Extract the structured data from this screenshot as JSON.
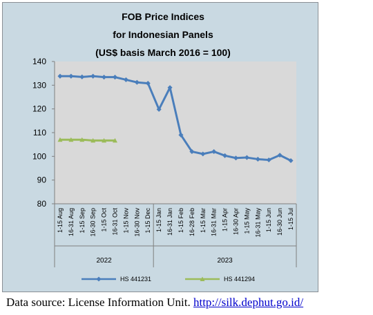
{
  "chart_data": {
    "type": "line",
    "title_lines": [
      "FOB Price Indices",
      "for Indonesian Panels",
      "(US$ basis March 2016 = 100)"
    ],
    "categories": [
      "1-15 Aug",
      "16-31 Aug",
      "1-15 Sep",
      "16-30 Sep",
      "1-15 Oct",
      "16-31 Oct",
      "1-15 Nov",
      "16-30 Nov",
      "1-15 Dec",
      "1-15 Jan",
      "16-31 Jan",
      "1-15 Feb",
      "16-28 Feb",
      "1-15 Mar",
      "16-31 Mar",
      "1-15 Apr",
      "16-30 Apr",
      "1-15 May",
      "16-31 May",
      "1-15 Jun",
      "16-30 Jun",
      "1-15 Jul"
    ],
    "year_groups": [
      {
        "label": "2022",
        "start": 0,
        "end": 8
      },
      {
        "label": "2023",
        "start": 9,
        "end": 21
      }
    ],
    "ylim": [
      80,
      140
    ],
    "yticks": [
      80,
      90,
      100,
      110,
      120,
      130,
      140
    ],
    "grid": "none",
    "legend_position": "bottom",
    "series": [
      {
        "name": "HS 441231",
        "color": "#4a7ebb",
        "values": [
          133.8,
          133.8,
          133.5,
          133.8,
          133.4,
          133.4,
          132.3,
          131.2,
          130.8,
          119.8,
          129.0,
          109.0,
          102.0,
          101.0,
          102.0,
          100.3,
          99.3,
          99.5,
          98.8,
          98.5,
          100.5,
          98.2
        ]
      },
      {
        "name": "HS 441294",
        "color": "#9bbb59",
        "values": [
          107.0,
          107.0,
          107.0,
          106.7,
          106.7,
          106.7,
          null,
          null,
          null,
          null,
          null,
          null,
          null,
          null,
          null,
          null,
          null,
          null,
          null,
          null,
          null,
          null
        ]
      }
    ]
  },
  "footer": {
    "label": "Data source: License Information Unit.",
    "link": "http://silk.dephut.go.id/"
  }
}
